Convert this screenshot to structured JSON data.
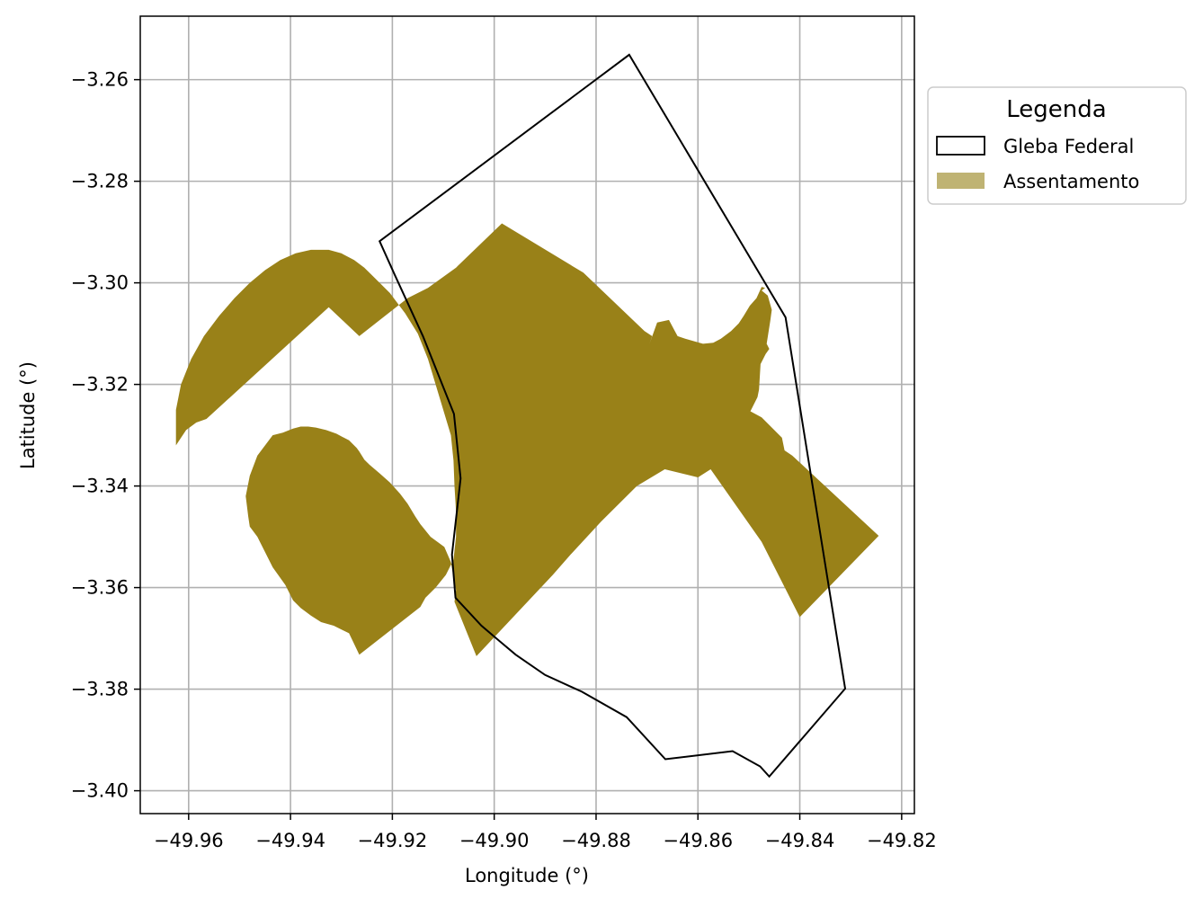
{
  "chart_data": {
    "type": "map",
    "xlabel": "Longitude (°)",
    "ylabel": "Latitude (°)",
    "xlim": [
      -49.9695,
      -49.8175
    ],
    "ylim": [
      -3.4045,
      -3.2475
    ],
    "xticks": [
      -49.96,
      -49.94,
      -49.92,
      -49.9,
      -49.88,
      -49.86,
      -49.84,
      -49.82
    ],
    "xtick_labels": [
      "−49.96",
      "−49.94",
      "−49.92",
      "−49.90",
      "−49.88",
      "−49.86",
      "−49.84",
      "−49.82"
    ],
    "yticks": [
      -3.26,
      -3.28,
      -3.3,
      -3.32,
      -3.34,
      -3.36,
      -3.38,
      -3.4
    ],
    "ytick_labels": [
      "−3.26",
      "−3.28",
      "−3.30",
      "−3.32",
      "−3.34",
      "−3.36",
      "−3.38",
      "−3.40"
    ],
    "grid": true,
    "legend": {
      "title": "Legenda",
      "placement": "outside-upper-right",
      "entries": [
        {
          "label": "Gleba Federal",
          "style": "outline",
          "color": "#000000"
        },
        {
          "label": "Assentamento",
          "style": "fill",
          "color": "#BFB373"
        }
      ]
    },
    "layers": [
      {
        "name": "Gleba Federal",
        "style": "outline",
        "stroke": "#000000",
        "points": [
          [
            -49.9225,
            -3.2918
          ],
          [
            -49.8735,
            -3.2551
          ],
          [
            -49.8428,
            -3.3068
          ],
          [
            -49.8311,
            -3.3799
          ],
          [
            -49.846,
            -3.3972
          ],
          [
            -49.8478,
            -3.3952
          ],
          [
            -49.8532,
            -3.3922
          ],
          [
            -49.8664,
            -3.3938
          ],
          [
            -49.874,
            -3.3855
          ],
          [
            -49.8828,
            -3.3805
          ],
          [
            -49.89,
            -3.3772
          ],
          [
            -49.8958,
            -3.3732
          ],
          [
            -49.899,
            -3.3705
          ],
          [
            -49.9025,
            -3.3675
          ],
          [
            -49.9076,
            -3.362
          ],
          [
            -49.9083,
            -3.3535
          ],
          [
            -49.9066,
            -3.3385
          ],
          [
            -49.9079,
            -3.3258
          ],
          [
            -49.914,
            -3.3105
          ],
          [
            -49.9195,
            -3.2985
          ]
        ]
      },
      {
        "name": "Assentamento",
        "style": "fill",
        "fill": "#998118",
        "points": [
          [
            -49.9625,
            -3.332
          ],
          [
            -49.9605,
            -3.329
          ],
          [
            -49.9585,
            -3.3275
          ],
          [
            -49.9565,
            -3.3268
          ],
          [
            -49.9325,
            -3.3048
          ],
          [
            -49.9265,
            -3.3105
          ],
          [
            -49.917,
            -3.303
          ],
          [
            -49.913,
            -3.301
          ],
          [
            -49.9075,
            -3.297
          ],
          [
            -49.8985,
            -3.2883
          ],
          [
            -49.8825,
            -3.298
          ],
          [
            -49.8705,
            -3.3095
          ],
          [
            -49.869,
            -3.3105
          ],
          [
            -49.8695,
            -3.312
          ],
          [
            -49.868,
            -3.3078
          ],
          [
            -49.8657,
            -3.3073
          ],
          [
            -49.8648,
            -3.309
          ],
          [
            -49.864,
            -3.3105
          ],
          [
            -49.8625,
            -3.311
          ],
          [
            -49.859,
            -3.312
          ],
          [
            -49.857,
            -3.3118
          ],
          [
            -49.8555,
            -3.311
          ],
          [
            -49.8535,
            -3.3095
          ],
          [
            -49.852,
            -3.308
          ],
          [
            -49.851,
            -3.3065
          ],
          [
            -49.8498,
            -3.3045
          ],
          [
            -49.8485,
            -3.303
          ],
          [
            -49.8475,
            -3.3008
          ],
          [
            -49.8468,
            -3.301
          ],
          [
            -49.8475,
            -3.3015
          ],
          [
            -49.8463,
            -3.3025
          ],
          [
            -49.8455,
            -3.3053
          ],
          [
            -49.8458,
            -3.3075
          ],
          [
            -49.8465,
            -3.312
          ],
          [
            -49.846,
            -3.313
          ],
          [
            -49.8467,
            -3.314
          ],
          [
            -49.8477,
            -3.316
          ],
          [
            -49.848,
            -3.321
          ],
          [
            -49.8483,
            -3.3225
          ],
          [
            -49.8497,
            -3.3253
          ],
          [
            -49.8475,
            -3.3265
          ],
          [
            -49.8435,
            -3.3305
          ],
          [
            -49.843,
            -3.333
          ],
          [
            -49.8415,
            -3.334
          ],
          [
            -49.8245,
            -3.3498
          ],
          [
            -49.84,
            -3.3658
          ],
          [
            -49.8475,
            -3.351
          ],
          [
            -49.8575,
            -3.3367
          ],
          [
            -49.86,
            -3.3383
          ],
          [
            -49.8665,
            -3.3367
          ],
          [
            -49.872,
            -3.34
          ],
          [
            -49.879,
            -3.347
          ],
          [
            -49.885,
            -3.3535
          ],
          [
            -49.8885,
            -3.3575
          ],
          [
            -49.9035,
            -3.3735
          ],
          [
            -49.9078,
            -3.3628
          ],
          [
            -49.9075,
            -3.3605
          ],
          [
            -49.9085,
            -3.355
          ],
          [
            -49.9098,
            -3.352
          ],
          [
            -49.9125,
            -3.35
          ],
          [
            -49.9145,
            -3.3475
          ],
          [
            -49.9155,
            -3.346
          ],
          [
            -49.917,
            -3.3435
          ],
          [
            -49.9185,
            -3.3415
          ],
          [
            -49.9205,
            -3.3393
          ],
          [
            -49.9225,
            -3.3375
          ],
          [
            -49.9245,
            -3.3358
          ],
          [
            -49.9255,
            -3.3348
          ],
          [
            -49.9265,
            -3.3332
          ],
          [
            -49.927,
            -3.3325
          ],
          [
            -49.9285,
            -3.331
          ],
          [
            -49.9295,
            -3.3305
          ],
          [
            -49.931,
            -3.3297
          ],
          [
            -49.933,
            -3.329
          ],
          [
            -49.935,
            -3.3285
          ],
          [
            -49.9365,
            -3.3283
          ],
          [
            -49.938,
            -3.3283
          ],
          [
            -49.9395,
            -3.3287
          ],
          [
            -49.9415,
            -3.3295
          ],
          [
            -49.9435,
            -3.33
          ],
          [
            -49.9465,
            -3.334
          ],
          [
            -49.948,
            -3.338
          ],
          [
            -49.9488,
            -3.342
          ],
          [
            -49.9483,
            -3.346
          ],
          [
            -49.948,
            -3.348
          ],
          [
            -49.9465,
            -3.35
          ],
          [
            -49.946,
            -3.351
          ],
          [
            -49.9435,
            -3.356
          ],
          [
            -49.941,
            -3.3595
          ],
          [
            -49.9395,
            -3.3625
          ],
          [
            -49.938,
            -3.364
          ],
          [
            -49.936,
            -3.3655
          ],
          [
            -49.934,
            -3.3668
          ],
          [
            -49.9315,
            -3.3675
          ],
          [
            -49.9285,
            -3.369
          ],
          [
            -49.9265,
            -3.3732
          ],
          [
            -49.9145,
            -3.3638
          ],
          [
            -49.9135,
            -3.362
          ],
          [
            -49.9115,
            -3.36
          ],
          [
            -49.9095,
            -3.3575
          ],
          [
            -49.908,
            -3.3545
          ],
          [
            -49.9075,
            -3.35
          ],
          [
            -49.9075,
            -3.345
          ],
          [
            -49.9078,
            -3.34
          ],
          [
            -49.908,
            -3.335
          ],
          [
            -49.9085,
            -3.33
          ],
          [
            -49.91,
            -3.325
          ],
          [
            -49.9115,
            -3.32
          ],
          [
            -49.913,
            -3.315
          ],
          [
            -49.915,
            -3.31
          ],
          [
            -49.9175,
            -3.306
          ],
          [
            -49.9205,
            -3.302
          ],
          [
            -49.924,
            -3.2985
          ],
          [
            -49.9255,
            -3.297
          ],
          [
            -49.9275,
            -3.2955
          ],
          [
            -49.93,
            -3.2942
          ],
          [
            -49.9325,
            -3.2935
          ],
          [
            -49.936,
            -3.2935
          ],
          [
            -49.939,
            -3.2942
          ],
          [
            -49.942,
            -3.2955
          ],
          [
            -49.945,
            -3.2975
          ],
          [
            -49.948,
            -3.3
          ],
          [
            -49.951,
            -3.303
          ],
          [
            -49.954,
            -3.3065
          ],
          [
            -49.957,
            -3.3105
          ],
          [
            -49.9595,
            -3.315
          ],
          [
            -49.9615,
            -3.32
          ],
          [
            -49.9625,
            -3.325
          ]
        ]
      }
    ]
  }
}
